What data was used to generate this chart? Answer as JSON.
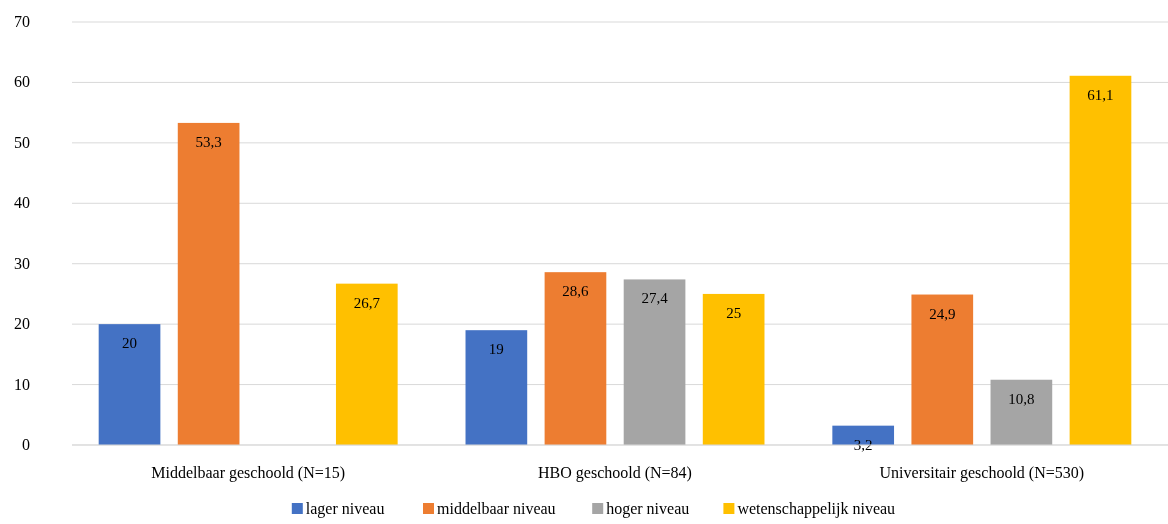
{
  "chart_data": {
    "type": "bar",
    "categories": [
      "Middelbaar geschoold (N=15)",
      "HBO geschoold (N=84)",
      "Universitair geschoold (N=530)"
    ],
    "series": [
      {
        "name": "lager niveau",
        "color": "#4472c4",
        "values": [
          20,
          19,
          3.2
        ],
        "value_labels": [
          "20",
          "19",
          "3,2"
        ]
      },
      {
        "name": "middelbaar niveau",
        "color": "#ed7d31",
        "values": [
          53.3,
          28.6,
          24.9
        ],
        "value_labels": [
          "53,3",
          "28,6",
          "24,9"
        ]
      },
      {
        "name": "hoger niveau",
        "color": "#a5a5a5",
        "values": [
          null,
          27.4,
          10.8
        ],
        "value_labels": [
          null,
          "27,4",
          "10,8"
        ]
      },
      {
        "name": "wetenschappelijk niveau",
        "color": "#ffc000",
        "values": [
          26.7,
          25,
          61.1
        ],
        "value_labels": [
          "26,7",
          "25",
          "61,1"
        ]
      }
    ],
    "ylim": [
      0,
      70
    ],
    "yticks": [
      0,
      10,
      20,
      30,
      40,
      50,
      60,
      70
    ],
    "grid": "y",
    "legend": "bottom"
  }
}
